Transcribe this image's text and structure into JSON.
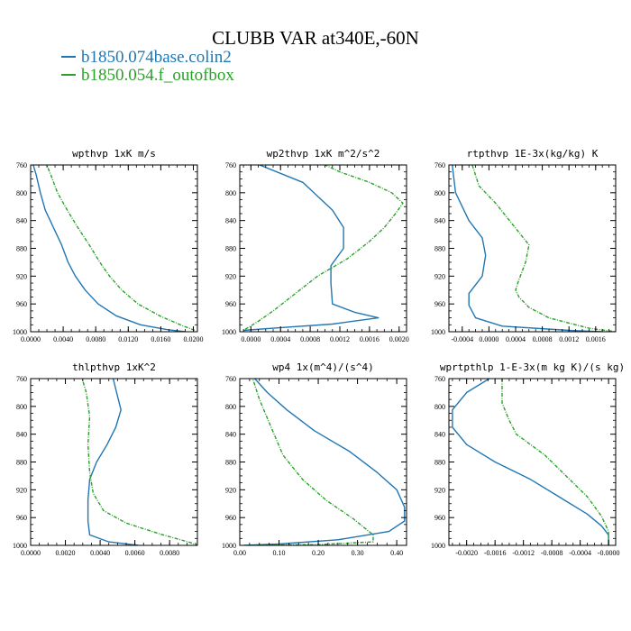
{
  "title": "CLUBB VAR at340E,-60N",
  "legend": [
    {
      "label": "b1850.074base.colin2",
      "color": "#1f77b4"
    },
    {
      "label": "b1850.054.f_outofbox",
      "color": "#2ca02c"
    }
  ],
  "chart_data": [
    {
      "type": "line",
      "title": "wpthvp  1xK m/s",
      "xlim": [
        0,
        0.0205
      ],
      "ylim": [
        760,
        1000
      ],
      "y_inverted": true,
      "xticks": [
        0,
        0.004,
        0.008,
        0.012,
        0.016,
        0.02
      ],
      "xtick_labels": [
        "0.0000",
        "0.0040",
        "0.0080",
        "0.0120",
        "0.0160",
        "0.0200"
      ],
      "yticks": [
        760,
        800,
        840,
        880,
        920,
        960,
        1000
      ],
      "series": [
        {
          "name": "b1850.074base.colin2",
          "color": "#1f77b4",
          "points": [
            [
              0.0002,
              755
            ],
            [
              0.0007,
              775
            ],
            [
              0.0012,
              800
            ],
            [
              0.0018,
              825
            ],
            [
              0.0028,
              850
            ],
            [
              0.0038,
              875
            ],
            [
              0.0046,
              900
            ],
            [
              0.0055,
              920
            ],
            [
              0.0067,
              940
            ],
            [
              0.0083,
              960
            ],
            [
              0.0105,
              977
            ],
            [
              0.0135,
              990
            ],
            [
              0.0168,
              997
            ],
            [
              0.019,
              1000
            ]
          ]
        },
        {
          "name": "b1850.054.f_outofbox",
          "color": "#2ca02c",
          "points": [
            [
              0.0018,
              755
            ],
            [
              0.0025,
              775
            ],
            [
              0.0033,
              800
            ],
            [
              0.0045,
              825
            ],
            [
              0.0058,
              850
            ],
            [
              0.0072,
              875
            ],
            [
              0.0085,
              900
            ],
            [
              0.0097,
              920
            ],
            [
              0.0112,
              940
            ],
            [
              0.0132,
              960
            ],
            [
              0.016,
              978
            ],
            [
              0.0188,
              992
            ],
            [
              0.0202,
              998
            ]
          ]
        }
      ]
    },
    {
      "type": "line",
      "title": "wp2thvp  1xK m^2/s^2",
      "xlim": [
        -0.00015,
        0.0021
      ],
      "ylim": [
        760,
        1000
      ],
      "y_inverted": true,
      "xticks": [
        0,
        0.0004,
        0.0008,
        0.0012,
        0.0016,
        0.002
      ],
      "xtick_labels": [
        "0.0000",
        "0.0004",
        "0.0008",
        "0.0012",
        "0.0016",
        "0.0020"
      ],
      "yticks": [
        760,
        800,
        840,
        880,
        920,
        960,
        1000
      ],
      "series": [
        {
          "name": "b1850.074base.colin2",
          "color": "#1f77b4",
          "points": [
            [
              0.0,
              755
            ],
            [
              0.0007,
              785
            ],
            [
              0.0011,
              825
            ],
            [
              0.00125,
              850
            ],
            [
              0.00125,
              880
            ],
            [
              0.00108,
              905
            ],
            [
              0.00108,
              930
            ],
            [
              0.0011,
              960
            ],
            [
              0.0014,
              972
            ],
            [
              0.00172,
              980
            ],
            [
              0.0011,
              989
            ],
            [
              0.0003,
              995
            ],
            [
              -0.0001,
              998
            ]
          ]
        },
        {
          "name": "b1850.054.f_outofbox",
          "color": "#2ca02c",
          "points": [
            [
              0.0009,
              755
            ],
            [
              0.0012,
              770
            ],
            [
              0.0016,
              785
            ],
            [
              0.0019,
              800
            ],
            [
              0.00205,
              815
            ],
            [
              0.00195,
              830
            ],
            [
              0.0018,
              850
            ],
            [
              0.0016,
              870
            ],
            [
              0.0013,
              895
            ],
            [
              0.0009,
              920
            ],
            [
              0.0006,
              945
            ],
            [
              0.0003,
              970
            ],
            [
              0.0001,
              985
            ],
            [
              -0.0001,
              998
            ]
          ]
        }
      ]
    },
    {
      "type": "line",
      "title": "rtpthvp  1E-3x(kg/kg) K",
      "xlim": [
        -0.0006,
        0.0019
      ],
      "ylim": [
        760,
        1000
      ],
      "y_inverted": true,
      "xticks": [
        -0.0004,
        0,
        0.0004,
        0.0008,
        0.0012,
        0.0016
      ],
      "xtick_labels": [
        "-0.0004",
        "0.0000",
        "0.0004",
        "0.0008",
        "0.0012",
        "0.0016"
      ],
      "yticks": [
        760,
        800,
        840,
        880,
        920,
        960,
        1000
      ],
      "series": [
        {
          "name": "b1850.074base.colin2",
          "color": "#1f77b4",
          "points": [
            [
              -0.00055,
              760
            ],
            [
              -0.0005,
              800
            ],
            [
              -0.0003,
              840
            ],
            [
              -0.0001,
              865
            ],
            [
              -5e-05,
              890
            ],
            [
              -0.0001,
              920
            ],
            [
              -0.0003,
              945
            ],
            [
              -0.0003,
              962
            ],
            [
              -0.0002,
              980
            ],
            [
              0.0002,
              992
            ],
            [
              0.0012,
              998
            ],
            [
              0.0017,
              1000
            ]
          ]
        },
        {
          "name": "b1850.054.f_outofbox",
          "color": "#2ca02c",
          "points": [
            [
              -0.00025,
              760
            ],
            [
              -0.00015,
              790
            ],
            [
              0.0001,
              815
            ],
            [
              0.00035,
              845
            ],
            [
              0.0006,
              875
            ],
            [
              0.00055,
              900
            ],
            [
              0.00045,
              925
            ],
            [
              0.0004,
              940
            ],
            [
              0.00045,
              950
            ],
            [
              0.0006,
              965
            ],
            [
              0.0009,
              980
            ],
            [
              0.0015,
              995
            ],
            [
              0.0019,
              1000
            ]
          ]
        }
      ]
    },
    {
      "type": "line",
      "title": "thlpthvp  1xK^2",
      "xlim": [
        0,
        0.0096
      ],
      "ylim": [
        760,
        1000
      ],
      "y_inverted": true,
      "xticks": [
        0,
        0.002,
        0.004,
        0.006,
        0.008
      ],
      "xtick_labels": [
        "0.0000",
        "0.0020",
        "0.0040",
        "0.0060",
        "0.0080"
      ],
      "yticks": [
        760,
        800,
        840,
        880,
        920,
        960,
        1000
      ],
      "series": [
        {
          "name": "b1850.074base.colin2",
          "color": "#1f77b4",
          "points": [
            [
              0.0047,
              755
            ],
            [
              0.0049,
              775
            ],
            [
              0.0052,
              805
            ],
            [
              0.0049,
              830
            ],
            [
              0.0044,
              855
            ],
            [
              0.0038,
              880
            ],
            [
              0.0034,
              905
            ],
            [
              0.0033,
              935
            ],
            [
              0.0033,
              965
            ],
            [
              0.0034,
              985
            ],
            [
              0.0045,
              995
            ],
            [
              0.0062,
              1000
            ]
          ]
        },
        {
          "name": "b1850.054.f_outofbox",
          "color": "#2ca02c",
          "points": [
            [
              0.0029,
              755
            ],
            [
              0.0032,
              780
            ],
            [
              0.0034,
              815
            ],
            [
              0.0033,
              855
            ],
            [
              0.0034,
              895
            ],
            [
              0.0036,
              925
            ],
            [
              0.0042,
              950
            ],
            [
              0.0055,
              968
            ],
            [
              0.0075,
              984
            ],
            [
              0.0092,
              996
            ],
            [
              0.0096,
              1000
            ]
          ]
        }
      ]
    },
    {
      "type": "line",
      "title": "wp4  1x(m^4)/(s^4)",
      "xlim": [
        0,
        0.425
      ],
      "ylim": [
        760,
        1000
      ],
      "y_inverted": true,
      "xticks": [
        0,
        0.1,
        0.2,
        0.3,
        0.4
      ],
      "xtick_labels": [
        "0.00",
        "0.10",
        "0.20",
        "0.30",
        "0.40"
      ],
      "yticks": [
        760,
        800,
        840,
        880,
        920,
        960,
        1000
      ],
      "series": [
        {
          "name": "b1850.074base.colin2",
          "color": "#1f77b4",
          "points": [
            [
              0.03,
              755
            ],
            [
              0.07,
              780
            ],
            [
              0.12,
              805
            ],
            [
              0.19,
              835
            ],
            [
              0.28,
              865
            ],
            [
              0.35,
              895
            ],
            [
              0.4,
              920
            ],
            [
              0.42,
              945
            ],
            [
              0.42,
              965
            ],
            [
              0.38,
              980
            ],
            [
              0.25,
              992
            ],
            [
              0.1,
              998
            ],
            [
              0.01,
              1000
            ]
          ]
        },
        {
          "name": "b1850.054.f_outofbox",
          "color": "#2ca02c",
          "points": [
            [
              0.03,
              755
            ],
            [
              0.05,
              790
            ],
            [
              0.08,
              830
            ],
            [
              0.11,
              870
            ],
            [
              0.16,
              905
            ],
            [
              0.22,
              935
            ],
            [
              0.29,
              962
            ],
            [
              0.34,
              985
            ],
            [
              0.34,
              995
            ],
            [
              0.2,
              999
            ],
            [
              0.02,
              1000
            ]
          ]
        }
      ]
    },
    {
      "type": "line",
      "title": "wprtpthlp  1-E-3x(m kg K)/(s kg)",
      "xlim": [
        -0.00225,
        0.0001
      ],
      "ylim": [
        760,
        1000
      ],
      "y_inverted": true,
      "xticks": [
        -0.002,
        -0.0016,
        -0.0012,
        -0.0008,
        -0.0004,
        0
      ],
      "xtick_labels": [
        "-0.0020",
        "-0.0016",
        "-0.0012",
        "-0.0008",
        "-0.0004",
        "-0.0000"
      ],
      "yticks": [
        760,
        800,
        840,
        880,
        920,
        960,
        1000
      ],
      "series": [
        {
          "name": "b1850.074base.colin2",
          "color": "#1f77b4",
          "points": [
            [
              -0.0016,
              755
            ],
            [
              -0.002,
              780
            ],
            [
              -0.0022,
              805
            ],
            [
              -0.0022,
              830
            ],
            [
              -0.002,
              855
            ],
            [
              -0.0016,
              880
            ],
            [
              -0.0011,
              905
            ],
            [
              -0.0007,
              930
            ],
            [
              -0.0003,
              955
            ],
            [
              -0.0001,
              972
            ],
            [
              0.0,
              985
            ],
            [
              0.0,
              1000
            ]
          ]
        },
        {
          "name": "b1850.054.f_outofbox",
          "color": "#2ca02c",
          "points": [
            [
              -0.0015,
              760
            ],
            [
              -0.0015,
              795
            ],
            [
              -0.0014,
              820
            ],
            [
              -0.0013,
              840
            ],
            [
              -0.0009,
              870
            ],
            [
              -0.0006,
              900
            ],
            [
              -0.0003,
              930
            ],
            [
              -0.0001,
              958
            ],
            [
              0.0,
              980
            ],
            [
              0.0,
              1000
            ]
          ]
        }
      ]
    }
  ]
}
